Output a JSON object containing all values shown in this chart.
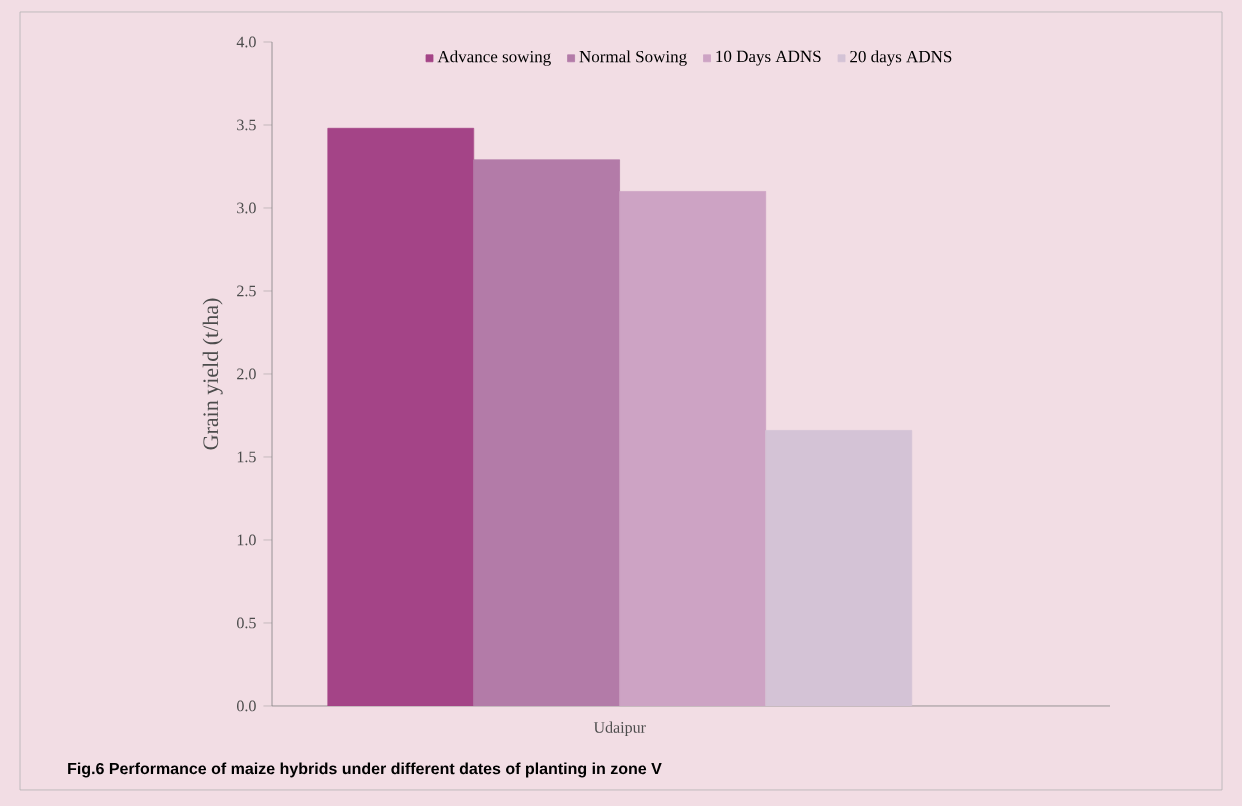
{
  "chart_data": {
    "type": "bar",
    "ylabel": "Grain yield (t/ha)",
    "categories": [
      "Udaipur"
    ],
    "series": [
      {
        "name": "Advance  sowing",
        "color": "#a44487",
        "values": [
          3.48
        ]
      },
      {
        "name": "Normal Sowing",
        "color": "#b37ba8",
        "values": [
          3.29
        ]
      },
      {
        "name": "10 Days ADNS",
        "color": "#cda3c4",
        "values": [
          3.1
        ]
      },
      {
        "name": "20 days ADNS",
        "color": "#d4c3d6",
        "values": [
          1.66
        ]
      }
    ],
    "ylim": [
      0,
      4
    ],
    "yticks": [
      {
        "value": 0,
        "label": "0.0"
      },
      {
        "value": 0.5,
        "label": "0.5"
      },
      {
        "value": 1,
        "label": "1.0"
      },
      {
        "value": 1.5,
        "label": "1.5"
      },
      {
        "value": 2,
        "label": "2.0"
      },
      {
        "value": 2.5,
        "label": "2.5"
      },
      {
        "value": 3,
        "label": "3.0"
      },
      {
        "value": 3.5,
        "label": "3.5"
      },
      {
        "value": 4,
        "label": "4.0"
      }
    ],
    "grid": false,
    "legend": "top",
    "annotations": [
      "Fig.6 Performance of maize hybrids under different dates of planting in zone V"
    ]
  }
}
